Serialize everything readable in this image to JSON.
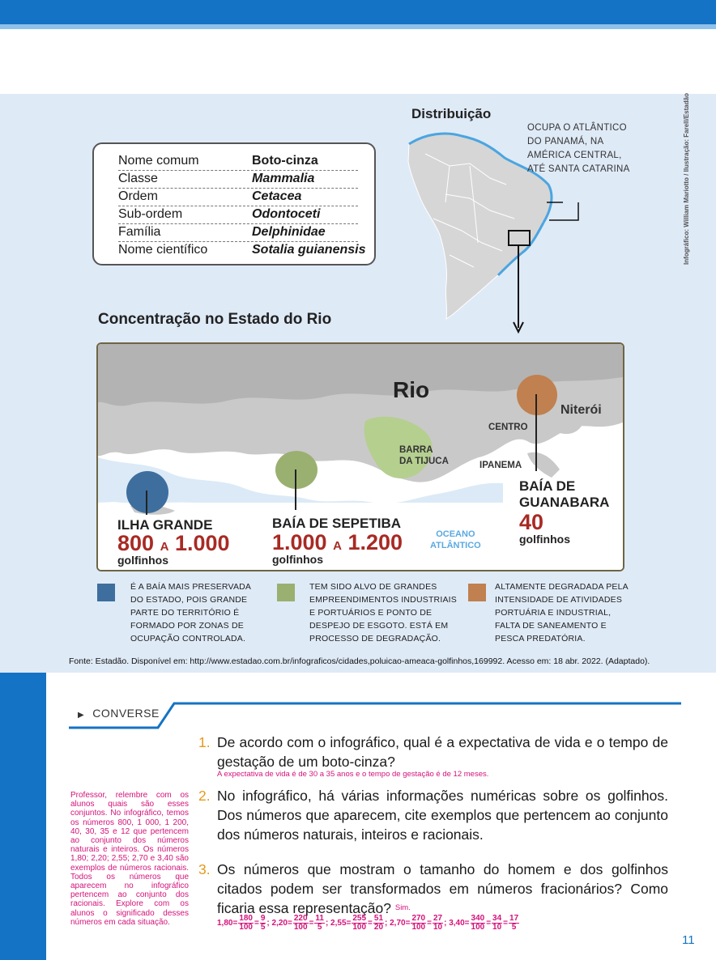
{
  "credit": "Infográfico: William Mariotto / Ilustração: Farell/Estadão",
  "taxonomy": {
    "rows": [
      {
        "key": "Nome comum",
        "value": "Boto-cinza"
      },
      {
        "key": "Classe",
        "value": "Mammalia"
      },
      {
        "key": "Ordem",
        "value": "Cetacea"
      },
      {
        "key": "Sub-ordem",
        "value": "Odontoceti"
      },
      {
        "key": "Família",
        "value": "Delphinidae"
      },
      {
        "key": "Nome científico",
        "value": "Sotalia guianensis"
      }
    ]
  },
  "distribution": {
    "title": "Distribuição",
    "note": "OCUPA O ATLÂNTICO DO PANAMÁ, NA AMÉRICA CENTRAL, ATÉ SANTA CATARINA"
  },
  "concentration": {
    "title": "Concentração no Estado do Rio",
    "map_labels": {
      "rio": "Rio",
      "niteroi": "Niterói",
      "centro": "CENTRO",
      "barra": "BARRA\nDA TIJUCA",
      "ipanema": "IPANEMA",
      "ocean": "OCEANO\nATLÂNTICO"
    },
    "sites": [
      {
        "name": "ILHA GRANDE",
        "count_from": "800",
        "count_sep": "A",
        "count_to": "1.000",
        "unit": "golfinhos",
        "color": "#3d6e9e"
      },
      {
        "name": "BAÍA DE SEPETIBA",
        "count_from": "1.000",
        "count_sep": "A",
        "count_to": "1.200",
        "unit": "golfinhos",
        "color": "#9ab071"
      },
      {
        "name": "BAÍA DE\nGUANABARA",
        "count": "40",
        "unit": "golfinhos",
        "color": "#c0804f"
      }
    ]
  },
  "legend": [
    {
      "color": "#3d6e9e",
      "text": "É A BAÍA MAIS PRESERVADA DO ESTADO, POIS GRANDE PARTE DO TERRITÓRIO É FORMADO POR ZONAS DE OCUPAÇÃO CONTROLADA."
    },
    {
      "color": "#9ab071",
      "text": "TEM SIDO ALVO DE GRANDES EMPREENDIMENTOS INDUSTRIAIS E PORTUÁRIOS E PONTO DE DESPEJO DE ESGOTO. ESTÁ EM PROCESSO DE DEGRADAÇÃO."
    },
    {
      "color": "#c0804f",
      "text": "ALTAMENTE DEGRADADA PELA INTENSIDADE DE ATIVIDADES PORTUÁRIA E INDUSTRIAL, FALTA DE SANEAMENTO E PESCA PREDATÓRIA."
    }
  ],
  "source": "Fonte: Estadão. Disponível em: http://www.estadao.com.br/infograficos/cidades,poluicao-ameaca-golfinhos,169992. Acesso em: 18 abr. 2022. (Adaptado).",
  "converse": {
    "label": "CONVERSE",
    "teacher_note": "Professor, relembre com os alunos quais são esses conjuntos. No infográfico, temos os números 800, 1 000, 1 200, 40, 30, 35 e 12 que pertencem ao conjunto dos números naturais e inteiros. Os números 1,80; 2,20; 2,55; 2,70 e 3,40 são exemplos de números racionais. Todos os números que aparecem no infográfico pertencem ao conjunto dos racionais. Explore com os alunos o significado desses números em cada situação.",
    "questions": [
      {
        "num": "1.",
        "text": "De acordo com o infográfico, qual é a expectativa de vida e o tempo de gestação de um boto-cinza?",
        "answer": "A expectativa de vida é de 30 a 35 anos e o tempo de gestação é de 12 meses."
      },
      {
        "num": "2.",
        "text": "No infográfico, há várias informações numéricas sobre os golfinhos. Dos números que aparecem, cite exemplos que pertencem ao conjunto dos números naturais, inteiros e racionais."
      },
      {
        "num": "3.",
        "text": "Os números que mostram o tamanho do homem e dos golfinhos citados podem ser transformados em números fracionários? Como ficaria essa representação?",
        "answer": "Sim."
      }
    ],
    "fractions": [
      {
        "dec": "1,80",
        "n1": "180",
        "d1": "100",
        "n2": "9",
        "d2": "5"
      },
      {
        "dec": "2,20",
        "n1": "220",
        "d1": "100",
        "n2": "11",
        "d2": "5"
      },
      {
        "dec": "2,55",
        "n1": "255",
        "d1": "100",
        "n2": "51",
        "d2": "20"
      },
      {
        "dec": "2,70",
        "n1": "270",
        "d1": "100",
        "n2": "27",
        "d2": "10"
      },
      {
        "dec": "3,40",
        "n1": "340",
        "d1": "100",
        "n2": "34",
        "d2": "10",
        "n3": "17",
        "d3": "5"
      }
    ]
  },
  "page_number": "11"
}
